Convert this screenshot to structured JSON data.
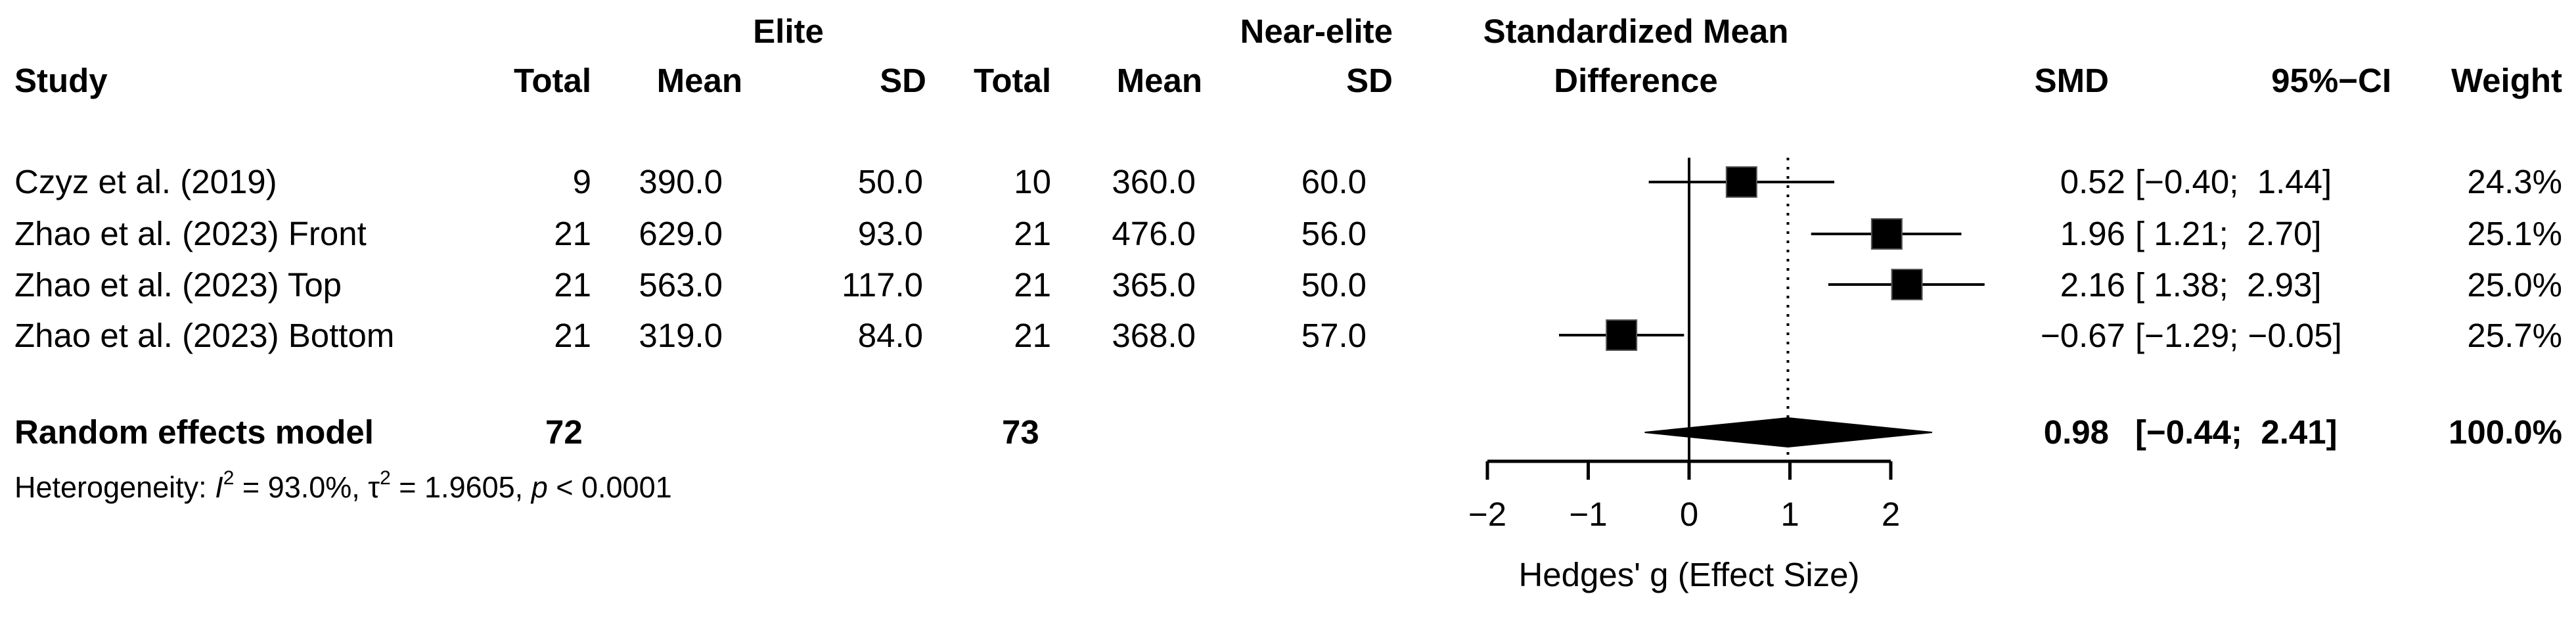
{
  "headers": {
    "study": "Study",
    "group1": "Elite",
    "group2": "Near-elite",
    "total": "Total",
    "mean": "Mean",
    "sd": "SD",
    "plot_title_1": "Standardized Mean",
    "plot_title_2": "Difference",
    "smd": "SMD",
    "ci": "95%−CI",
    "weight": "Weight"
  },
  "studies": [
    {
      "study": "Czyz et al. (2019)",
      "e_total": "9",
      "e_mean": "390.0",
      "e_sd": "50.0",
      "c_total": "10",
      "c_mean": "360.0",
      "c_sd": "60.0",
      "smd": "0.52",
      "ci": "[−0.40;  1.44]",
      "weight": "24.3%"
    },
    {
      "study": "Zhao et al. (2023) Front",
      "e_total": "21",
      "e_mean": "629.0",
      "e_sd": "93.0",
      "c_total": "21",
      "c_mean": "476.0",
      "c_sd": "56.0",
      "smd": "1.96",
      "ci": "[ 1.21;  2.70]",
      "weight": "25.1%"
    },
    {
      "study": "Zhao et al. (2023) Top",
      "e_total": "21",
      "e_mean": "563.0",
      "e_sd": "117.0",
      "c_total": "21",
      "c_mean": "365.0",
      "c_sd": "50.0",
      "smd": "2.16",
      "ci": "[ 1.38;  2.93]",
      "weight": "25.0%"
    },
    {
      "study": "Zhao et al. (2023) Bottom",
      "e_total": "21",
      "e_mean": "319.0",
      "e_sd": "84.0",
      "c_total": "21",
      "c_mean": "368.0",
      "c_sd": "57.0",
      "smd": "−0.67",
      "ci": "[−1.29; −0.05]",
      "weight": "25.7%"
    }
  ],
  "pooled": {
    "label": "Random effects model",
    "e_total": "72",
    "c_total": "73",
    "smd": "0.98",
    "ci": "[−0.44;  2.41]",
    "weight": "100.0%"
  },
  "heterogeneity": {
    "prefix": "Heterogeneity: ",
    "i2_label": "I",
    "i2_value": " = 93.0%, ",
    "tau2_label": "τ",
    "tau2_value": " = 1.9605, ",
    "p_label": "p",
    "p_value": " < 0.0001"
  },
  "chart_data": {
    "type": "forest",
    "xlabel": "Hedges' g (Effect Size)",
    "xlim": [
      -2,
      2
    ],
    "ticks": [
      -2,
      -1,
      0,
      1,
      2
    ],
    "tick_labels": [
      "−2",
      "−1",
      "0",
      "1",
      "2"
    ],
    "null_line": 0,
    "pooled_line": 0.98,
    "studies": [
      {
        "name": "Czyz et al. (2019)",
        "smd": 0.52,
        "lower": -0.4,
        "upper": 1.44,
        "weight": 24.3
      },
      {
        "name": "Zhao et al. (2023) Front",
        "smd": 1.96,
        "lower": 1.21,
        "upper": 2.7,
        "weight": 25.1
      },
      {
        "name": "Zhao et al. (2023) Top",
        "smd": 2.16,
        "lower": 1.38,
        "upper": 2.93,
        "weight": 25.0
      },
      {
        "name": "Zhao et al. (2023) Bottom",
        "smd": -0.67,
        "lower": -1.29,
        "upper": -0.05,
        "weight": 25.7
      }
    ],
    "pooled": {
      "smd": 0.98,
      "lower": -0.44,
      "upper": 2.41
    }
  }
}
